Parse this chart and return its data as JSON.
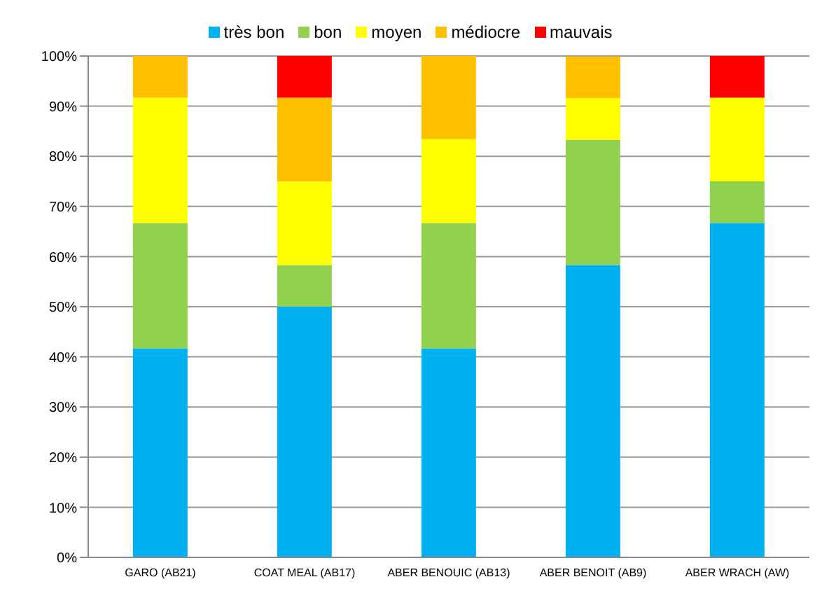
{
  "chart_data": {
    "type": "bar",
    "stacked": true,
    "categories": [
      "GARO (AB21)",
      "COAT MEAL (AB17)",
      "ABER BENOUIC (AB13)",
      "ABER BENOIT (AB9)",
      "ABER WRACH (AW)"
    ],
    "series": [
      {
        "name": "très bon",
        "color": "#00b0f0",
        "values": [
          41.7,
          50,
          41.7,
          58.3,
          66.7
        ]
      },
      {
        "name": "bon",
        "color": "#92d050",
        "values": [
          25,
          8.3,
          25,
          25,
          8.3
        ]
      },
      {
        "name": "moyen",
        "color": "#ffff00",
        "values": [
          25,
          16.7,
          16.7,
          8.3,
          16.7
        ]
      },
      {
        "name": "médiocre",
        "color": "#ffc000",
        "values": [
          8.3,
          16.7,
          16.7,
          8.3,
          0
        ]
      },
      {
        "name": "mauvais",
        "color": "#ff0000",
        "values": [
          0,
          8.3,
          0,
          0,
          8.3
        ]
      }
    ],
    "ylim": [
      0,
      100
    ],
    "yticks": [
      {
        "value": 0,
        "label": "0%"
      },
      {
        "value": 10,
        "label": "10%"
      },
      {
        "value": 20,
        "label": "20%"
      },
      {
        "value": 30,
        "label": "30%"
      },
      {
        "value": 40,
        "label": "40%"
      },
      {
        "value": 50,
        "label": "50%"
      },
      {
        "value": 60,
        "label": "60%"
      },
      {
        "value": 70,
        "label": "70%"
      },
      {
        "value": 80,
        "label": "80%"
      },
      {
        "value": 90,
        "label": "90%"
      },
      {
        "value": 100,
        "label": "100%"
      }
    ],
    "grid": "y",
    "legend": "top"
  }
}
